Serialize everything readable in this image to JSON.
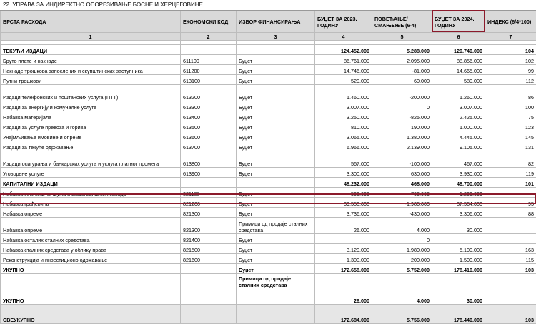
{
  "title": "22. УПРАВА ЗА ИНДИРЕКТНО ОПОРЕЗИВАЊЕ БОСНЕ И ХЕРЦЕГОВИНЕ",
  "headers": {
    "vrsta": "ВРСТА РАСХОДА",
    "konto": "ЕКОНОМСКИ КОД",
    "izvor": "ИЗВОР ФИНАНСИРАЊА",
    "b2023": "БУЏЕТ ЗА 2023. ГОДИНУ",
    "pov": "ПОВЕЋАЊЕ/ СМАЊЕЊЕ (6-4)",
    "b2024": "БУЏЕТ ЗА 2024. ГОДИНУ",
    "index": "ИНДЕКС (6/4*100)"
  },
  "col_numbers": [
    "1",
    "2",
    "3",
    "4",
    "5",
    "6",
    "7"
  ],
  "highlight_color": "#8b1a2b",
  "rows": {
    "r1": {
      "name": "ТЕКУЋИ ИЗДАЦИ",
      "code": "",
      "src": "",
      "b23": "124.452.000",
      "delta": "5.288.000",
      "b24": "129.740.000",
      "idx": "104"
    },
    "r2": {
      "name": "Бруто плате и накнаде",
      "code": "611100",
      "src": "Буџет",
      "b23": "86.761.000",
      "delta": "2.095.000",
      "b24": "88.856.000",
      "idx": "102"
    },
    "r3": {
      "name": "Накнаде трошкова запослених и скупштинских заступника",
      "code": "611200",
      "src": "Буџет",
      "b23": "14.746.000",
      "delta": "-81.000",
      "b24": "14.665.000",
      "idx": "99"
    },
    "r4": {
      "name": "Путни трошкови",
      "code": "613100",
      "src": "Буџет",
      "b23": "520.000",
      "delta": "60.000",
      "b24": "580.000",
      "idx": "112"
    },
    "r5": {
      "name": "Издаци телефонских и поштанских услуга (ПТТ)",
      "code": "613200",
      "src": "Буџет",
      "b23": "1.460.000",
      "delta": "-200.000",
      "b24": "1.260.000",
      "idx": "86"
    },
    "r6": {
      "name": "Издаци за енергију и комуналне услуге",
      "code": "613300",
      "src": "Буџет",
      "b23": "3.007.000",
      "delta": "0",
      "b24": "3.007.000",
      "idx": "100"
    },
    "r7": {
      "name": "Набавка материјала",
      "code": "613400",
      "src": "Буџет",
      "b23": "3.250.000",
      "delta": "-825.000",
      "b24": "2.425.000",
      "idx": "75"
    },
    "r8": {
      "name": "Издаци за услуге превоза и горива",
      "code": "613500",
      "src": "Буџет",
      "b23": "810.000",
      "delta": "190.000",
      "b24": "1.000.000",
      "idx": "123"
    },
    "r9": {
      "name": "Унајмљивање имовине и опреме",
      "code": "613600",
      "src": "Буџет",
      "b23": "3.065.000",
      "delta": "1.380.000",
      "b24": "4.445.000",
      "idx": "145"
    },
    "r10": {
      "name": "Издаци за текуће одржавање",
      "code": "613700",
      "src": "Буџет",
      "b23": "6.966.000",
      "delta": "2.139.000",
      "b24": "9.105.000",
      "idx": "131"
    },
    "r11": {
      "name": "Издаци осигурања и банкарских услуга и услуга платног промета",
      "code": "613800",
      "src": "Буџет",
      "b23": "567.000",
      "delta": "-100.000",
      "b24": "467.000",
      "idx": "82"
    },
    "r12": {
      "name": "Уговорене услуге",
      "code": "613900",
      "src": "Буџет",
      "b23": "3.300.000",
      "delta": "630.000",
      "b24": "3.930.000",
      "idx": "119"
    },
    "r13": {
      "name": "КАПИТАЛНИ ИЗДАЦИ",
      "code": "",
      "src": "",
      "b23": "48.232.000",
      "delta": "468.000",
      "b24": "48.700.000",
      "idx": "101"
    },
    "r14": {
      "name": "Набавка земљишта, шума и вишегодишњих засада",
      "code": "821100",
      "src": "Буџет",
      "b23": "500.000",
      "delta": "700.000",
      "b24": "1.200.000",
      "idx": ""
    },
    "r15": {
      "name": "Набавка грађевина",
      "code": "821200",
      "src": "Буџет",
      "b23": "39.550.000",
      "delta": "-1.986.000",
      "b24": "37.564.000",
      "idx": "95"
    },
    "r16": {
      "name": "Набавка опреме",
      "code": "821300",
      "src": "Буџет",
      "b23": "3.736.000",
      "delta": "-430.000",
      "b24": "3.306.000",
      "idx": "88"
    },
    "r17": {
      "name": "Набавка опреме",
      "code": "821300",
      "src": "Примици од продаје сталних средстава",
      "b23": "26.000",
      "delta": "4.000",
      "b24": "30.000",
      "idx": ""
    },
    "r18": {
      "name": "Набавка осталих сталних средстава",
      "code": "821400",
      "src": "Буџет",
      "b23": "",
      "delta": "0",
      "b24": "",
      "idx": ""
    },
    "r19": {
      "name": "Набавка сталних средстава у облику права",
      "code": "821500",
      "src": "Буџет",
      "b23": "3.120.000",
      "delta": "1.980.000",
      "b24": "5.100.000",
      "idx": "163"
    },
    "r20": {
      "name": "Реконструкција и инвестиционо одржавање",
      "code": "821600",
      "src": "Буџет",
      "b23": "1.300.000",
      "delta": "200.000",
      "b24": "1.500.000",
      "idx": "115"
    },
    "r21": {
      "name": "УКУПНО",
      "code": "",
      "src": "Буџет",
      "b23": "172.658.000",
      "delta": "5.752.000",
      "b24": "178.410.000",
      "idx": "103"
    },
    "r22": {
      "name": "УКУПНО",
      "code": "",
      "src": "Примици од продаје сталних средстава",
      "b23": "26.000",
      "delta": "4.000",
      "b24": "30.000",
      "idx": ""
    },
    "r23": {
      "name": "СВЕУКУПНО",
      "code": "",
      "src": "",
      "b23": "172.684.000",
      "delta": "5.756.000",
      "b24": "178.440.000",
      "idx": "103"
    }
  }
}
